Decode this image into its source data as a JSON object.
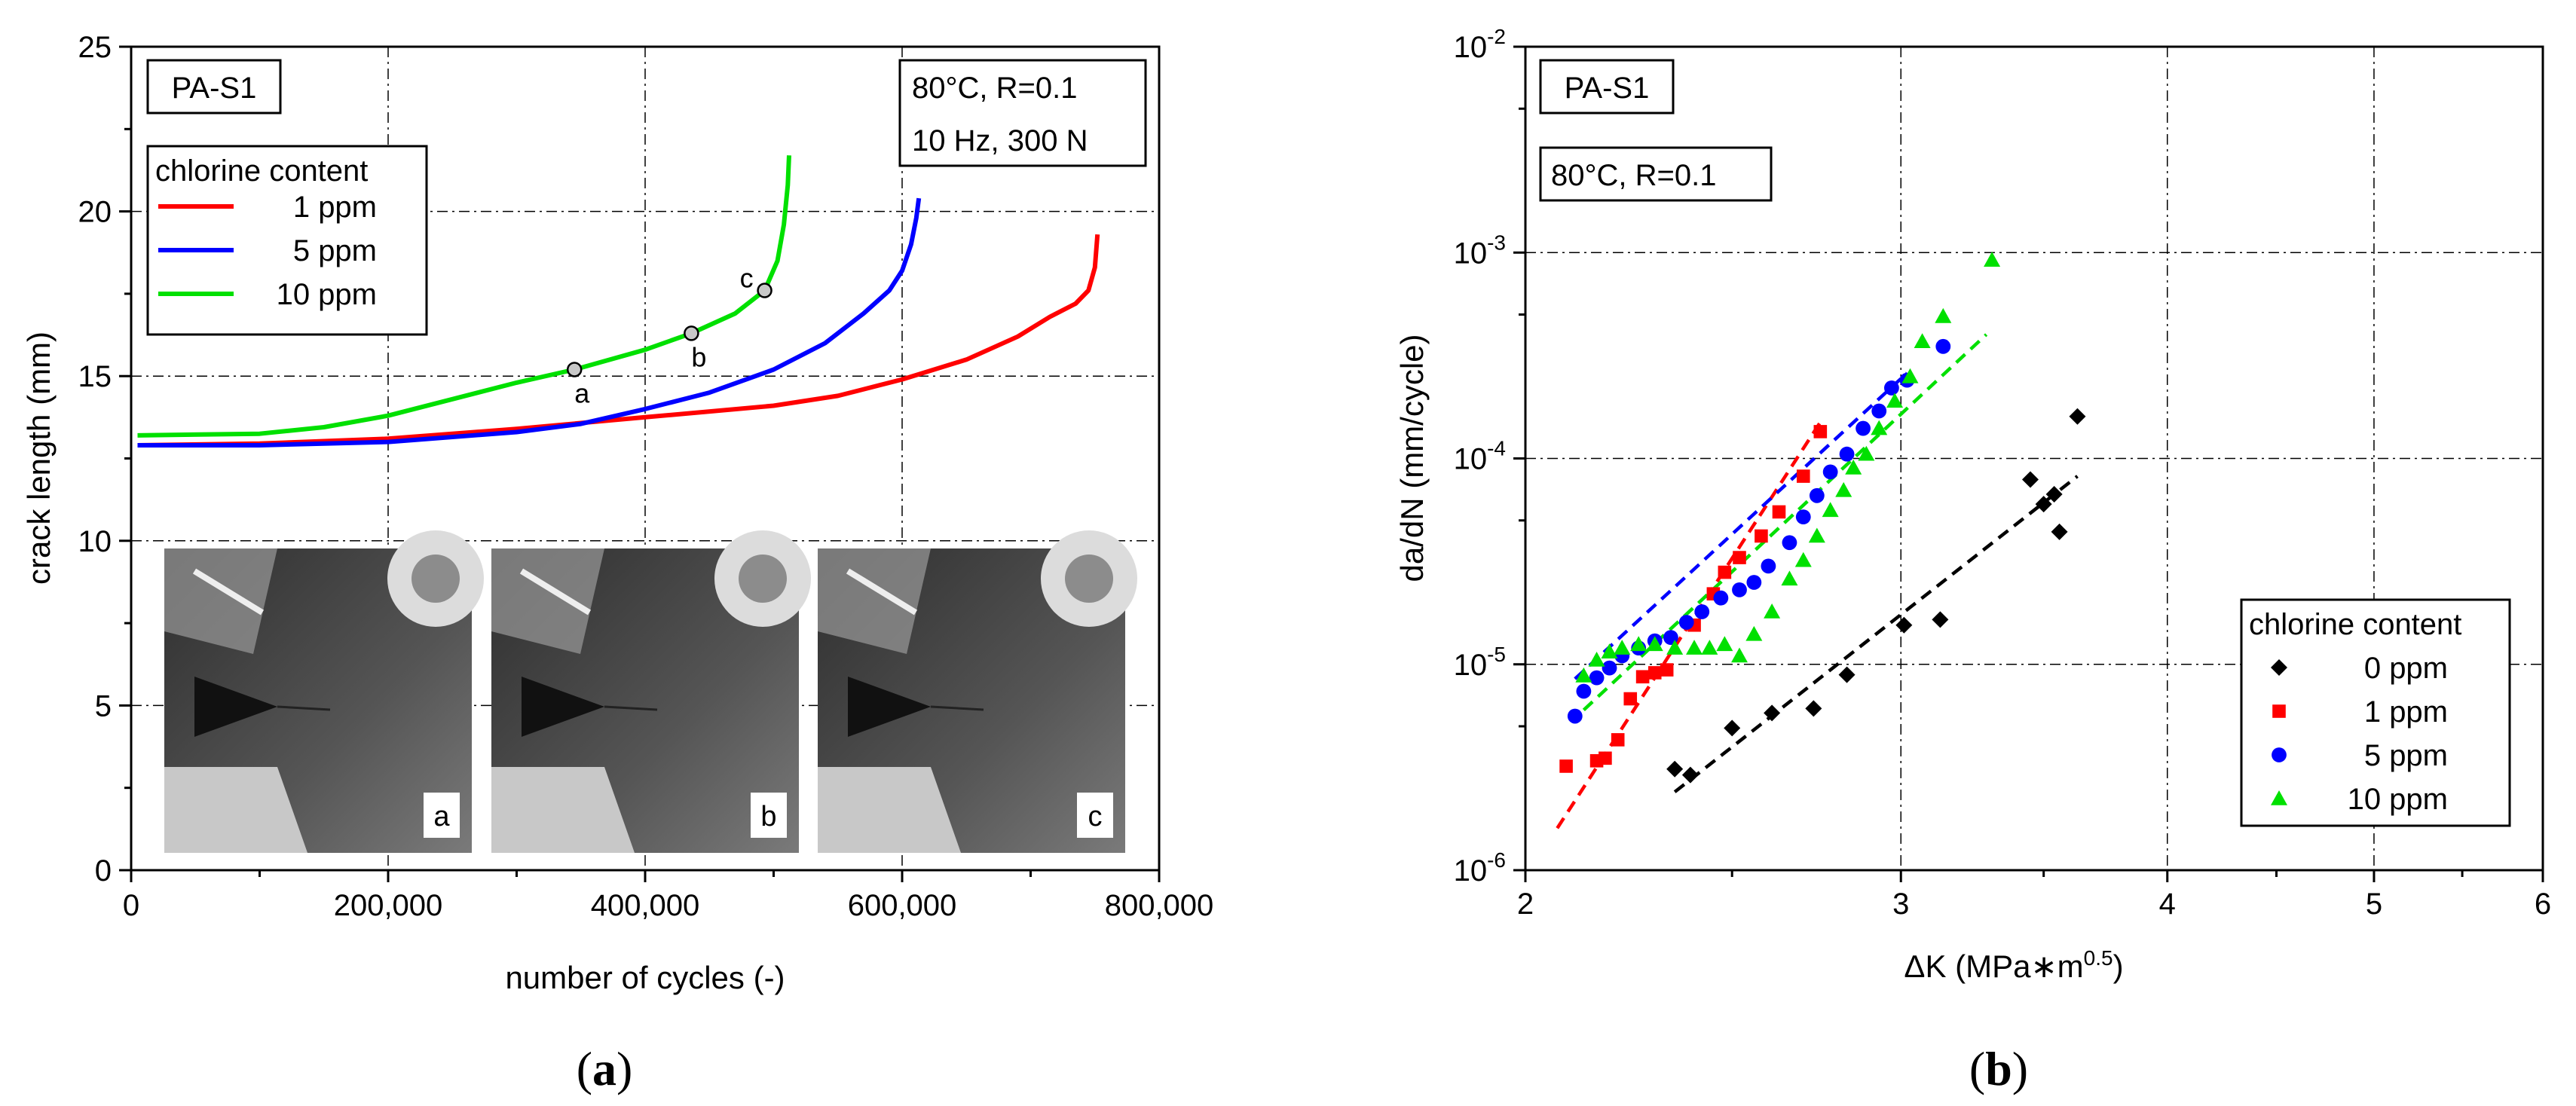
{
  "chart_data": [
    {
      "panel_label": "(a)",
      "type": "line",
      "xlabel": "number of cycles (-)",
      "ylabel": "crack length (mm)",
      "xlim": [
        0,
        800000
      ],
      "ylim": [
        0,
        25
      ],
      "x_ticks": [
        0,
        200000,
        400000,
        600000,
        800000
      ],
      "x_tick_labels": [
        "0",
        "200,000",
        "400,000",
        "600,000",
        "800,000"
      ],
      "y_ticks": [
        0,
        5,
        10,
        15,
        20,
        25
      ],
      "y_tick_labels": [
        "0",
        "5",
        "10",
        "15",
        "20",
        "25"
      ],
      "grid": true,
      "material_label": "PA-S1",
      "conditions": [
        "80°C, R=0.1",
        "10 Hz, 300 N"
      ],
      "legend_title": "chlorine content",
      "legend_position": "top-left",
      "series": [
        {
          "name": "1 ppm",
          "color": "#ff0000",
          "x": [
            5000,
            100000,
            200000,
            300000,
            400000,
            500000,
            550000,
            600000,
            650000,
            690000,
            715000,
            735000,
            745000,
            750000,
            752000
          ],
          "y": [
            12.9,
            12.95,
            13.1,
            13.4,
            13.75,
            14.1,
            14.4,
            14.9,
            15.5,
            16.2,
            16.8,
            17.2,
            17.6,
            18.3,
            19.3
          ]
        },
        {
          "name": "5 ppm",
          "color": "#0000ff",
          "x": [
            5000,
            100000,
            200000,
            300000,
            350000,
            400000,
            450000,
            500000,
            540000,
            570000,
            590000,
            600000,
            607000,
            611000,
            613000
          ],
          "y": [
            12.9,
            12.9,
            13.0,
            13.3,
            13.55,
            14.0,
            14.5,
            15.2,
            16.0,
            16.9,
            17.6,
            18.2,
            19.0,
            19.8,
            20.4
          ]
        },
        {
          "name": "10 ppm",
          "color": "#00e000",
          "x": [
            5000,
            100000,
            150000,
            200000,
            250000,
            300000,
            345000,
            400000,
            436000,
            470000,
            493000,
            503000,
            508000,
            511000,
            512000
          ],
          "y": [
            13.2,
            13.25,
            13.45,
            13.8,
            14.3,
            14.8,
            15.2,
            15.8,
            16.3,
            16.9,
            17.6,
            18.5,
            19.6,
            20.8,
            21.7
          ]
        }
      ],
      "markers": [
        {
          "label": "a",
          "x": 345000,
          "y": 15.2
        },
        {
          "label": "b",
          "x": 436000,
          "y": 16.3
        },
        {
          "label": "c",
          "x": 493000,
          "y": 17.6
        }
      ],
      "inset_image_labels": [
        "a",
        "b",
        "c"
      ]
    },
    {
      "panel_label": "(b)",
      "type": "scatter",
      "xlabel": "ΔK (MPa∗m",
      "xlabel_sup": "0.5",
      "xlabel_end": ")",
      "ylabel": "da/dN (mm/cycle)",
      "xscale": "log",
      "yscale": "log",
      "xlim": [
        2,
        6
      ],
      "ylim": [
        1e-06,
        0.01
      ],
      "x_ticks": [
        2,
        3,
        4,
        5,
        6
      ],
      "x_tick_labels": [
        "2",
        "3",
        "4",
        "5",
        "6"
      ],
      "y_ticks": [
        1e-06,
        1e-05,
        0.0001,
        0.001,
        0.01
      ],
      "y_tick_base": "10",
      "y_tick_exponents": [
        "-6",
        "-5",
        "-4",
        "-3",
        "-2"
      ],
      "grid": true,
      "material_label": "PA-S1",
      "conditions": [
        "80°C, R=0.1"
      ],
      "legend_title": "chlorine content",
      "legend_position": "bottom-right",
      "series": [
        {
          "name": "0 ppm",
          "color": "#000000",
          "marker": "diamond",
          "points": [
            [
              2.35,
              3.1e-06
            ],
            [
              2.39,
              2.9e-06
            ],
            [
              2.5,
              4.9e-06
            ],
            [
              2.61,
              5.8e-06
            ],
            [
              2.73,
              6.1e-06
            ],
            [
              2.83,
              8.9e-06
            ],
            [
              3.01,
              1.55e-05
            ],
            [
              3.13,
              1.65e-05
            ],
            [
              3.45,
              7.9e-05
            ],
            [
              3.5,
              6e-05
            ],
            [
              3.54,
              6.7e-05
            ],
            [
              3.56,
              4.4e-05
            ],
            [
              3.63,
              0.00016
            ]
          ],
          "fit": [
            [
              2.35,
              2.4e-06
            ],
            [
              3.63,
              8.2e-05
            ]
          ]
        },
        {
          "name": "1 ppm",
          "color": "#ff0000",
          "marker": "square",
          "points": [
            [
              2.09,
              3.2e-06
            ],
            [
              2.16,
              3.4e-06
            ],
            [
              2.18,
              3.5e-06
            ],
            [
              2.21,
              4.3e-06
            ],
            [
              2.24,
              6.8e-06
            ],
            [
              2.27,
              8.7e-06
            ],
            [
              2.3,
              9.1e-06
            ],
            [
              2.33,
              9.4e-06
            ],
            [
              2.4,
              1.55e-05
            ],
            [
              2.45,
              2.2e-05
            ],
            [
              2.48,
              2.8e-05
            ],
            [
              2.52,
              3.3e-05
            ],
            [
              2.58,
              4.2e-05
            ],
            [
              2.63,
              5.5e-05
            ],
            [
              2.7,
              8.2e-05
            ],
            [
              2.75,
              0.000135
            ]
          ],
          "fit": [
            [
              2.07,
              1.6e-06
            ],
            [
              2.75,
              0.00015
            ]
          ]
        },
        {
          "name": "5 ppm",
          "color": "#0000ff",
          "marker": "circle",
          "points": [
            [
              2.11,
              5.6e-06
            ],
            [
              2.13,
              7.4e-06
            ],
            [
              2.16,
              8.6e-06
            ],
            [
              2.19,
              9.6e-06
            ],
            [
              2.22,
              1.1e-05
            ],
            [
              2.26,
              1.2e-05
            ],
            [
              2.3,
              1.3e-05
            ],
            [
              2.34,
              1.35e-05
            ],
            [
              2.38,
              1.6e-05
            ],
            [
              2.42,
              1.8e-05
            ],
            [
              2.47,
              2.1e-05
            ],
            [
              2.52,
              2.3e-05
            ],
            [
              2.56,
              2.5e-05
            ],
            [
              2.6,
              3e-05
            ],
            [
              2.66,
              3.9e-05
            ],
            [
              2.7,
              5.2e-05
            ],
            [
              2.74,
              6.6e-05
            ],
            [
              2.78,
              8.6e-05
            ],
            [
              2.83,
              0.000105
            ],
            [
              2.88,
              0.00014
            ],
            [
              2.93,
              0.00017
            ],
            [
              2.97,
              0.00022
            ],
            [
              3.02,
              0.00024
            ],
            [
              3.14,
              0.00035
            ]
          ],
          "fit": [
            [
              2.11,
              8.5e-06
            ],
            [
              3.02,
              0.00026
            ]
          ]
        },
        {
          "name": "10 ppm",
          "color": "#00e000",
          "marker": "triangle",
          "points": [
            [
              2.13,
              8.8e-06
            ],
            [
              2.16,
              1.05e-05
            ],
            [
              2.19,
              1.15e-05
            ],
            [
              2.22,
              1.2e-05
            ],
            [
              2.26,
              1.25e-05
            ],
            [
              2.3,
              1.25e-05
            ],
            [
              2.35,
              1.2e-05
            ],
            [
              2.4,
              1.2e-05
            ],
            [
              2.44,
              1.2e-05
            ],
            [
              2.48,
              1.25e-05
            ],
            [
              2.52,
              1.1e-05
            ],
            [
              2.56,
              1.4e-05
            ],
            [
              2.61,
              1.8e-05
            ],
            [
              2.66,
              2.6e-05
            ],
            [
              2.7,
              3.2e-05
            ],
            [
              2.74,
              4.2e-05
            ],
            [
              2.78,
              5.6e-05
            ],
            [
              2.82,
              7e-05
            ],
            [
              2.85,
              9e-05
            ],
            [
              2.89,
              0.000105
            ],
            [
              2.93,
              0.00014
            ],
            [
              2.98,
              0.00019
            ],
            [
              3.03,
              0.00025
            ],
            [
              3.07,
              0.00037
            ],
            [
              3.14,
              0.00049
            ],
            [
              3.31,
              0.00092
            ]
          ],
          "fit": [
            [
              2.13,
              6e-06
            ],
            [
              3.29,
              0.0004
            ]
          ]
        }
      ]
    }
  ]
}
